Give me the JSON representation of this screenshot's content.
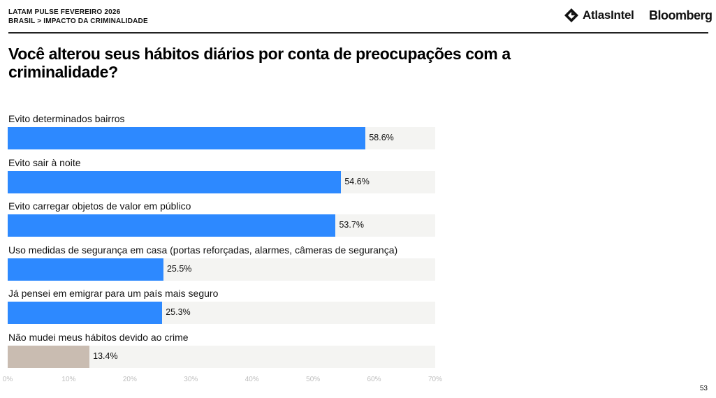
{
  "header": {
    "line1": "LATAM PULSE FEVEREIRO 2026",
    "line2": "BRASIL > IMPACTO DA CRIMINALIDADE",
    "atlas_logo": "AtlasIntel",
    "bloomberg_logo": "Bloomberg"
  },
  "page_number": "53",
  "chart_data": {
    "type": "bar",
    "orientation": "horizontal",
    "title": "Você alterou seus hábitos diários por conta de preocupações com a criminalidade?",
    "categories": [
      "Evito determinados bairros",
      "Evito sair à noite",
      "Evito carregar objetos de valor em público",
      "Uso medidas de segurança em casa (portas reforçadas, alarmes, câmeras de segurança)",
      "Já pensei em emigrar para um país mais seguro",
      "Não mudei meus hábitos devido ao crime"
    ],
    "values": [
      58.6,
      54.6,
      53.7,
      25.5,
      25.3,
      13.4
    ],
    "value_labels": [
      "58.6%",
      "54.6%",
      "53.7%",
      "25.5%",
      "25.3%",
      "13.4%"
    ],
    "colors": [
      "#2d89ff",
      "#2d89ff",
      "#2d89ff",
      "#2d89ff",
      "#2d89ff",
      "#c9bcb1"
    ],
    "track_color": "#f4f4f2",
    "xlim": [
      0,
      70
    ],
    "xticks": [
      "0%",
      "10%",
      "20%",
      "30%",
      "40%",
      "50%",
      "60%",
      "70%"
    ],
    "grid": false,
    "legend": "none"
  }
}
